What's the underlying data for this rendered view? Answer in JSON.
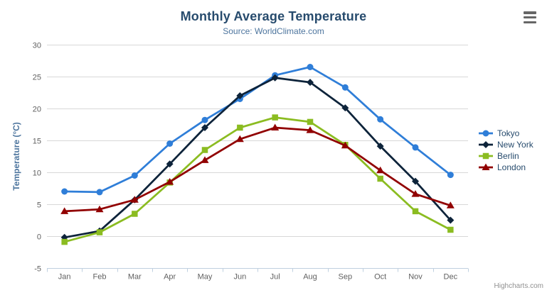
{
  "header": {
    "title": "Monthly Average Temperature",
    "subtitle": "Source: WorldClimate.com"
  },
  "credits_label": "Highcharts.com",
  "export_menu": {
    "icon": "hamburger-icon",
    "tooltip": "Chart context menu"
  },
  "chart_data": {
    "type": "line",
    "title": "Monthly Average Temperature",
    "subtitle": "Source: WorldClimate.com",
    "categories": [
      "Jan",
      "Feb",
      "Mar",
      "Apr",
      "May",
      "Jun",
      "Jul",
      "Aug",
      "Sep",
      "Oct",
      "Nov",
      "Dec"
    ],
    "xlabel": "",
    "ylabel": "Temperature (°C)",
    "ylim": [
      -5,
      30
    ],
    "ytick_interval": 5,
    "grid": true,
    "legend_position": "right",
    "series": [
      {
        "name": "Tokyo",
        "color": "#2f7ed8",
        "marker": "circle",
        "values": [
          7.0,
          6.9,
          9.5,
          14.5,
          18.2,
          21.5,
          25.2,
          26.5,
          23.3,
          18.3,
          13.9,
          9.6
        ]
      },
      {
        "name": "New York",
        "color": "#0d233a",
        "marker": "diamond",
        "values": [
          -0.2,
          0.8,
          5.7,
          11.3,
          17.0,
          22.0,
          24.8,
          24.1,
          20.1,
          14.1,
          8.6,
          2.5
        ]
      },
      {
        "name": "Berlin",
        "color": "#8bbc21",
        "marker": "square",
        "values": [
          -0.9,
          0.6,
          3.5,
          8.4,
          13.5,
          17.0,
          18.6,
          17.9,
          14.3,
          9.0,
          3.9,
          1.0
        ]
      },
      {
        "name": "London",
        "color": "#910000",
        "marker": "triangle",
        "values": [
          3.9,
          4.2,
          5.7,
          8.5,
          11.9,
          15.2,
          17.0,
          16.6,
          14.2,
          10.3,
          6.6,
          4.8
        ]
      }
    ]
  },
  "colors": {
    "title": "#274b6d",
    "subtitle": "#4d759e",
    "axis_title": "#4d759e",
    "tick_label": "#606060",
    "grid_line": "#d8d8d8",
    "axis_line": "#c0d0e0",
    "legend_text": "#274b6d",
    "credits": "#909090",
    "menu_icon": "#666666"
  }
}
